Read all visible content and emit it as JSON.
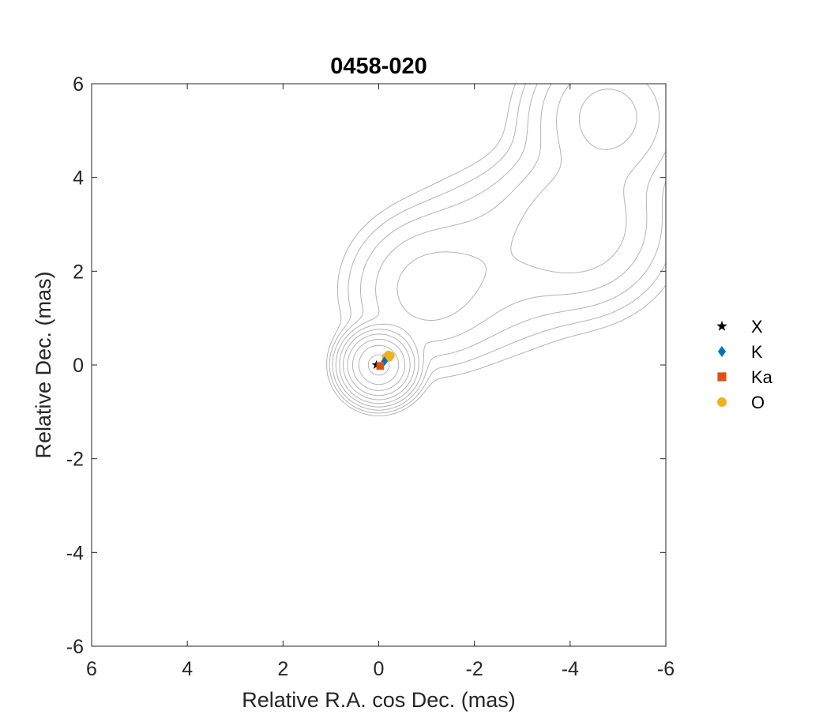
{
  "chart_data": {
    "type": "scatter",
    "title": "0458-020",
    "xlabel": "Relative R.A. cos Dec. (mas)",
    "ylabel": "Relative Dec. (mas)",
    "xlim": [
      6,
      -6
    ],
    "ylim": [
      -6,
      6
    ],
    "x_reversed": true,
    "xticks": [
      "6",
      "4",
      "2",
      "0",
      "-2",
      "-4",
      "-6"
    ],
    "xtick_values": [
      6,
      4,
      2,
      0,
      -2,
      -4,
      -6
    ],
    "yticks": [
      "-6",
      "-4",
      "-2",
      "0",
      "2",
      "4",
      "6"
    ],
    "ytick_values": [
      -6,
      -4,
      -2,
      0,
      2,
      4,
      6
    ],
    "grid": false,
    "legend_position": "outside-right",
    "contours": {
      "color": "#b4b4b4",
      "components": [
        {
          "x": 0.0,
          "y": 0.0,
          "flux": 100,
          "sigma": 0.3
        },
        {
          "x": -1.0,
          "y": 1.6,
          "flux": 3.2,
          "sigma": 0.75
        },
        {
          "x": -2.4,
          "y": 2.2,
          "flux": 1.6,
          "sigma": 0.9
        },
        {
          "x": -4.2,
          "y": 3.0,
          "flux": 4.5,
          "sigma": 0.85
        },
        {
          "x": -4.8,
          "y": 5.3,
          "flux": 6.5,
          "sigma": 0.75
        }
      ],
      "levels": [
        0.15,
        0.3,
        0.6,
        1.2,
        2.4,
        4.8,
        9.6,
        19.2,
        38.4,
        76.8
      ]
    },
    "series": [
      {
        "name": "X",
        "marker": "star",
        "color": "#000000",
        "x": [
          0.05
        ],
        "y": [
          0.0
        ]
      },
      {
        "name": "K",
        "marker": "diamond",
        "color": "#0072BD",
        "x": [
          -0.12
        ],
        "y": [
          0.08
        ]
      },
      {
        "name": "Ka",
        "marker": "square",
        "color": "#D95319",
        "x": [
          -0.03
        ],
        "y": [
          -0.02
        ]
      },
      {
        "name": "O",
        "marker": "circle",
        "color": "#EDB120",
        "x": [
          -0.15,
          -0.2,
          -0.25,
          -0.22
        ],
        "y": [
          0.17,
          0.22,
          0.2,
          0.16
        ]
      }
    ]
  }
}
